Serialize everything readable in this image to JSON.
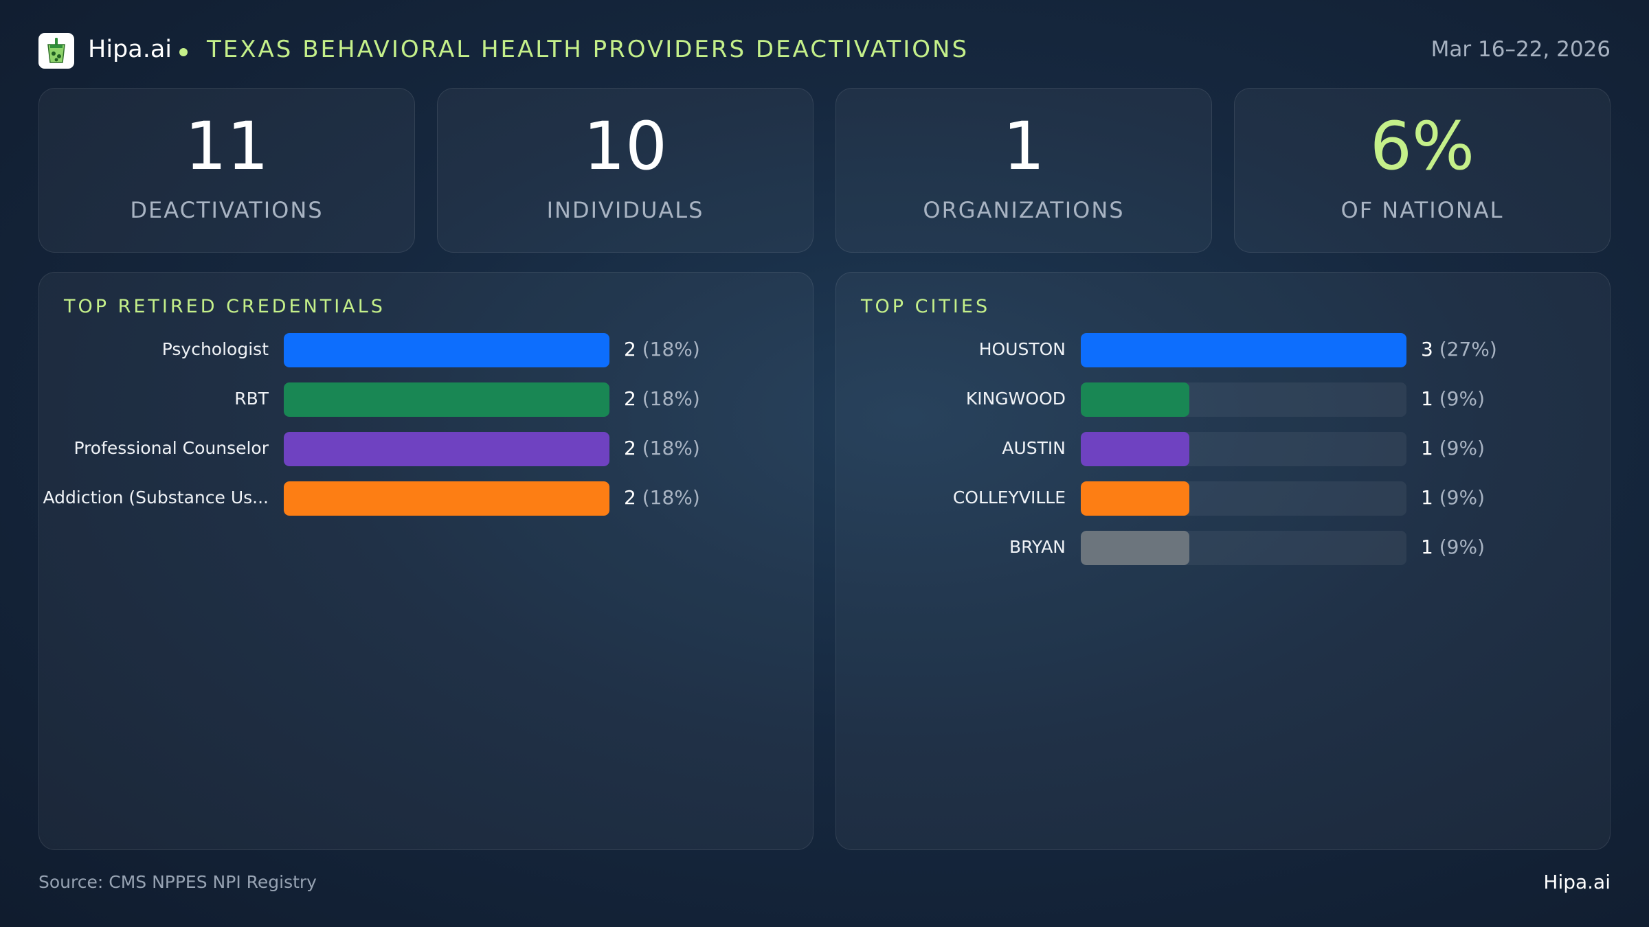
{
  "header": {
    "brand": "Hipa.ai",
    "title": "TEXAS BEHAVIORAL HEALTH PROVIDERS DEACTIVATIONS",
    "date_range": "Mar 16–22, 2026",
    "logo_icon": "drink-cup-icon"
  },
  "kpis": [
    {
      "value": "11",
      "label": "DEACTIVATIONS",
      "color": "#ffffff"
    },
    {
      "value": "10",
      "label": "INDIVIDUALS",
      "color": "#ffffff"
    },
    {
      "value": "1",
      "label": "ORGANIZATIONS",
      "color": "#ffffff"
    },
    {
      "value": "6%",
      "label": "OF NATIONAL",
      "color": "#c5f08a"
    }
  ],
  "chart_data": [
    {
      "type": "bar",
      "orientation": "horizontal",
      "title": "TOP RETIRED CREDENTIALS",
      "categories": [
        "Psychologist",
        "RBT",
        "Professional Counselor",
        "Addiction (Substance Us..."
      ],
      "values": [
        2,
        2,
        2,
        2
      ],
      "value_labels": [
        "2",
        "2",
        "2",
        "2"
      ],
      "percent_labels": [
        "(18%)",
        "(18%)",
        "(18%)",
        "(18%)"
      ],
      "colors": [
        "#0d6efd",
        "#198754",
        "#6f42c1",
        "#fd7e14"
      ],
      "xlim": [
        0,
        2
      ]
    },
    {
      "type": "bar",
      "orientation": "horizontal",
      "title": "TOP CITIES",
      "categories": [
        "HOUSTON",
        "KINGWOOD",
        "AUSTIN",
        "COLLEYVILLE",
        "BRYAN"
      ],
      "values": [
        3,
        1,
        1,
        1,
        1
      ],
      "value_labels": [
        "3",
        "1",
        "1",
        "1",
        "1"
      ],
      "percent_labels": [
        "(27%)",
        "(9%)",
        "(9%)",
        "(9%)",
        "(9%)"
      ],
      "colors": [
        "#0d6efd",
        "#198754",
        "#6f42c1",
        "#fd7e14",
        "#6c757d"
      ],
      "xlim": [
        0,
        3
      ]
    }
  ],
  "footer": {
    "source": "Source: CMS NPPES NPI Registry",
    "brand": "Hipa.ai"
  }
}
